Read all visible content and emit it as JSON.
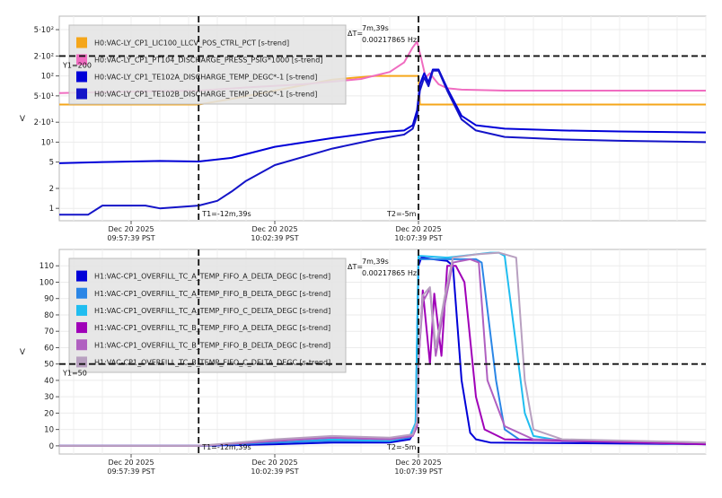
{
  "chart_data": [
    {
      "type": "line",
      "yscale": "log",
      "ylabel": "V",
      "ylim": [
        0.65,
        800
      ],
      "xlim": [
        -17.5,
        5
      ],
      "yticks": [
        {
          "v": 500,
          "label": "5·10²"
        },
        {
          "v": 200,
          "label": "2·10²"
        },
        {
          "v": 100,
          "label": "10²"
        },
        {
          "v": 50,
          "label": "5·10¹"
        },
        {
          "v": 20,
          "label": "2·10¹"
        },
        {
          "v": 10,
          "label": "10¹"
        },
        {
          "v": 5,
          "label": "5"
        },
        {
          "v": 2,
          "label": "2"
        },
        {
          "v": 1,
          "label": "1"
        }
      ],
      "xticks": [
        {
          "t": -15,
          "l1": "Dec 20 2025",
          "l2": "09:57:39 PST"
        },
        {
          "t": -10,
          "l1": "Dec 20 2025",
          "l2": "10:02:39 PST"
        },
        {
          "t": -5,
          "l1": "Dec 20 2025",
          "l2": "10:07:39 PST"
        }
      ],
      "cursors": {
        "t1": -12.65,
        "t2": -5,
        "y1": 200,
        "t1_label": "T1=-12m,39s",
        "t2_label": "T2=-5m",
        "y1_label": "Y1=200",
        "delta_label": "ΔT=",
        "delta_time": "7m,39s",
        "delta_freq": "0.00217865 Hz"
      },
      "series": [
        {
          "name": "H0:VAC-LY_CP1_LIC100_LLCV_POS_CTRL_PCT [s-trend]",
          "color": "#f5a61a",
          "x": [
            -17.5,
            -12.65,
            -11.5,
            -10,
            -8,
            -6.5,
            -5,
            -4.95,
            5
          ],
          "y": [
            37,
            37,
            45,
            60,
            88,
            100,
            100,
            37,
            37
          ]
        },
        {
          "name": "H0:VAC-LY_CP1_PT104_DISCHARGE_PRESS_PSIG*1000 [s-trend]",
          "color": "#f06cc0",
          "x": [
            -17.5,
            -16,
            -14,
            -12.65,
            -11,
            -9,
            -7,
            -6,
            -5.5,
            -5.2,
            -5.05,
            -4.9,
            -4.75,
            -4.6,
            -4.45,
            -4.3,
            -4,
            -3.5,
            -2,
            0,
            2,
            5
          ],
          "y": [
            55,
            57,
            59,
            60,
            67,
            75,
            90,
            115,
            160,
            270,
            330,
            180,
            95,
            110,
            90,
            75,
            65,
            62,
            60,
            60,
            60,
            60
          ]
        },
        {
          "name": "H0:VAC-LY_CP1_TE102A_DISCHARGE_TEMP_DEGC*-1 [s-trend]",
          "color": "#0000d8",
          "x": [
            -17.5,
            -16,
            -14,
            -12.65,
            -11.5,
            -10,
            -8,
            -6.5,
            -5.5,
            -5.2,
            -5.05,
            -4.95,
            -4.8,
            -4.65,
            -4.5,
            -4.3,
            -4,
            -3.5,
            -3,
            -2,
            0,
            2,
            5
          ],
          "y": [
            4.8,
            5,
            5.2,
            5.1,
            5.8,
            8.5,
            11.5,
            14,
            15,
            18,
            30,
            75,
            110,
            80,
            125,
            125,
            65,
            25,
            18,
            16,
            15,
            14.5,
            14
          ]
        },
        {
          "name": "H0:VAC-LY_CP1_TE102B_DISCHARGE_TEMP_DEGC*-1 [s-trend]",
          "color": "#1414c8",
          "x": [
            -17.5,
            -16.5,
            -16,
            -14.5,
            -14,
            -12.65,
            -12,
            -11.5,
            -11,
            -10,
            -8,
            -6.5,
            -5.5,
            -5.2,
            -5.05,
            -4.95,
            -4.8,
            -4.65,
            -4.5,
            -4.3,
            -4,
            -3.5,
            -3,
            -2,
            0,
            2,
            5
          ],
          "y": [
            0.8,
            0.8,
            1.1,
            1.1,
            1,
            1.1,
            1.3,
            1.8,
            2.6,
            4.5,
            8,
            11,
            13,
            16,
            25,
            60,
            95,
            70,
            120,
            120,
            60,
            22,
            15,
            12,
            11,
            10.5,
            10
          ]
        }
      ]
    },
    {
      "type": "line",
      "ylabel": "V",
      "ylim": [
        -5,
        120
      ],
      "xlim": [
        -17.5,
        5
      ],
      "yticks": [
        {
          "v": 110,
          "label": "110"
        },
        {
          "v": 100,
          "label": "100"
        },
        {
          "v": 90,
          "label": "90"
        },
        {
          "v": 80,
          "label": "80"
        },
        {
          "v": 70,
          "label": "70"
        },
        {
          "v": 60,
          "label": "60"
        },
        {
          "v": 50,
          "label": "50"
        },
        {
          "v": 40,
          "label": "40"
        },
        {
          "v": 30,
          "label": "30"
        },
        {
          "v": 20,
          "label": "20"
        },
        {
          "v": 10,
          "label": "10"
        },
        {
          "v": 0,
          "label": "0"
        }
      ],
      "xticks": [
        {
          "t": -15,
          "l1": "Dec 20 2025",
          "l2": "09:57:39 PST"
        },
        {
          "t": -10,
          "l1": "Dec 20 2025",
          "l2": "10:02:39 PST"
        },
        {
          "t": -5,
          "l1": "Dec 20 2025",
          "l2": "10:07:39 PST"
        }
      ],
      "cursors": {
        "t1": -12.65,
        "t2": -5,
        "y1": 50,
        "t1_label": "T1=-12m,39s",
        "t2_label": "T2=-5m",
        "y1_label": "Y1=50",
        "delta_label": "ΔT=",
        "delta_time": "7m,39s",
        "delta_freq": "0.00217865 Hz"
      },
      "series": [
        {
          "name": "H1:VAC-CP1_OVERFILL_TC_A_TEMP_FIFO_A_DELTA_DEGC [s-trend]",
          "color": "#0000d8",
          "x": [
            -17.5,
            -12.65,
            -10,
            -8,
            -6,
            -5.3,
            -5.1,
            -5,
            -4.9,
            -4.5,
            -4,
            -3.8,
            -3.5,
            -3.2,
            -3,
            -2.5,
            5
          ],
          "y": [
            0,
            0,
            1,
            2,
            2,
            4,
            10,
            110,
            115,
            114,
            113,
            110,
            40,
            8,
            4,
            2,
            1
          ]
        },
        {
          "name": "H1:VAC-CP1_OVERFILL_TC_A_TEMP_FIFO_B_DELTA_DEGC [s-trend]",
          "color": "#2b86e6",
          "x": [
            -17.5,
            -12.65,
            -10,
            -8,
            -6,
            -5.3,
            -5.1,
            -5,
            -4.9,
            -3,
            -2.8,
            -2.3,
            -2,
            -1.5,
            5
          ],
          "y": [
            0,
            0,
            2,
            3,
            3,
            5,
            12,
            115,
            114,
            114,
            112,
            40,
            10,
            4,
            1
          ]
        },
        {
          "name": "H1:VAC-CP1_OVERFILL_TC_A_TEMP_FIFO_C_DELTA_DEGC [s-trend]",
          "color": "#20bdf0",
          "x": [
            -17.5,
            -12.65,
            -10,
            -8,
            -6,
            -5.3,
            -5.1,
            -5,
            -4.9,
            -4,
            -2.5,
            -2.2,
            -2,
            -1.3,
            -1,
            0,
            5
          ],
          "y": [
            0,
            0,
            3,
            4,
            3,
            6,
            14,
            116,
            116,
            115,
            118,
            118,
            116,
            20,
            6,
            3,
            1
          ]
        },
        {
          "name": "H1:VAC-CP1_OVERFILL_TC_B_TEMP_FIFO_A_DELTA_DEGC [s-trend]",
          "color": "#a000b8",
          "x": [
            -17.5,
            -12.65,
            -10,
            -8,
            -6,
            -5.2,
            -5.05,
            -5,
            -4.85,
            -4.6,
            -4.45,
            -4.2,
            -4,
            -3.7,
            -3.4,
            -3,
            -2.7,
            -2,
            5
          ],
          "y": [
            0,
            0,
            3,
            5,
            4,
            6,
            12,
            50,
            95,
            50,
            93,
            55,
            110,
            110,
            100,
            30,
            10,
            4,
            1
          ]
        },
        {
          "name": "H1:VAC-CP1_OVERFILL_TC_B_TEMP_FIFO_B_DELTA_DEGC [s-trend]",
          "color": "#b060c0",
          "x": [
            -17.5,
            -12.65,
            -10,
            -8,
            -6,
            -5.2,
            -5.05,
            -5,
            -4.85,
            -4.6,
            -4.4,
            -4.1,
            -3.8,
            -3.2,
            -2.9,
            -2.6,
            -2,
            -1,
            5
          ],
          "y": [
            0,
            0,
            3,
            5,
            4,
            6,
            13,
            52,
            88,
            96,
            55,
            85,
            112,
            114,
            112,
            40,
            12,
            4,
            2
          ]
        },
        {
          "name": "H1:VAC-CP1_OVERFILL_TC_B_TEMP_FIFO_C_DELTA_DEGC [s-trend]",
          "color": "#b8a0c0",
          "x": [
            -17.5,
            -12.65,
            -10,
            -8,
            -6,
            -5.2,
            -5.05,
            -5,
            -4.85,
            -4.6,
            -4.4,
            -4.1,
            -3.8,
            -3,
            -2.2,
            -1.6,
            -1.3,
            -1,
            0,
            5
          ],
          "y": [
            0,
            0,
            4,
            6,
            5,
            7,
            15,
            55,
            92,
            97,
            60,
            90,
            115,
            117,
            118,
            115,
            40,
            10,
            4,
            2
          ]
        }
      ]
    }
  ]
}
